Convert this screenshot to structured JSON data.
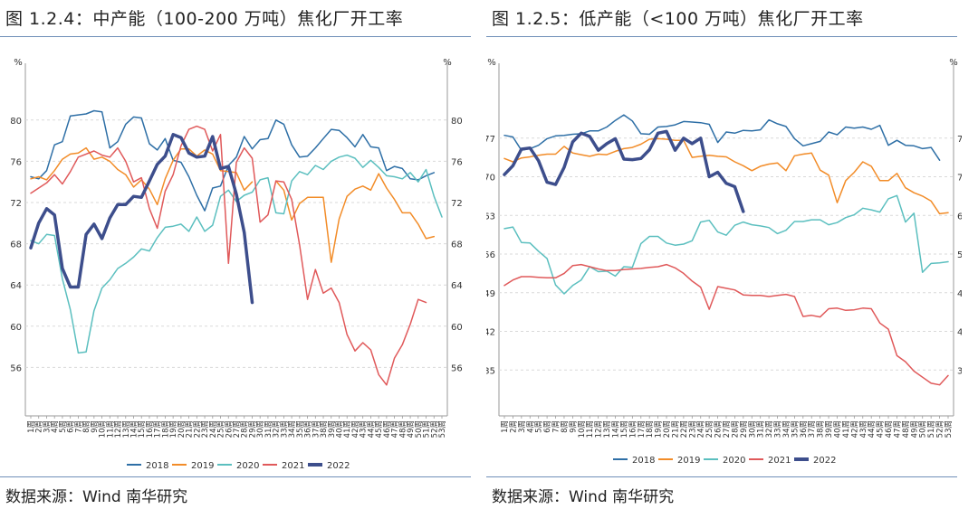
{
  "chart_data": [
    {
      "type": "line",
      "figure_title": "图 1.2.4：中产能（100-200 万吨）焦化厂开工率",
      "source": "数据来源：Wind 南华研究",
      "ylabel_left": "%",
      "ylabel_right": "%",
      "ylim": [
        52,
        82
      ],
      "yticks": [
        56,
        60,
        64,
        68,
        72,
        76,
        80
      ],
      "x_ticks": [
        "1周",
        "2周",
        "3周",
        "4周",
        "5周",
        "6周",
        "7周",
        "8周",
        "9周",
        "10周",
        "11周",
        "12周",
        "13周",
        "14周",
        "15周",
        "16周",
        "17周",
        "18周",
        "19周",
        "20周",
        "21周",
        "22周",
        "23周",
        "24周",
        "25周",
        "26周",
        "27周",
        "28周",
        "29周",
        "30周",
        "31周",
        "32周",
        "33周",
        "34周",
        "35周",
        "36周",
        "37周",
        "38周",
        "39周",
        "40周",
        "41周",
        "42周",
        "43周",
        "44周",
        "45周",
        "46周",
        "47周",
        "48周",
        "49周",
        "50周",
        "51周",
        "52周",
        "53周"
      ],
      "series": [
        {
          "name": "2018",
          "color": "#2e6fa6",
          "width": 1.5,
          "values": [
            74.5,
            74.3,
            75.1,
            77.6,
            77.9,
            80.4,
            80.5,
            80.6,
            80.9,
            80.8,
            77.3,
            77.9,
            79.6,
            80.3,
            80.2,
            77.7,
            77.1,
            78.2,
            76.1,
            75.9,
            74.5,
            72.7,
            71.2,
            73.4,
            73.6,
            75.6,
            76.4,
            78.4,
            77.2,
            78.1,
            78.2,
            80.0,
            79.6,
            77.6,
            76.4,
            76.5,
            77.3,
            78.2,
            79.1,
            79.0,
            78.3,
            77.4,
            78.6,
            77.4,
            77.3,
            75.1,
            75.5,
            75.3,
            74.3,
            74.2,
            74.6,
            74.9,
            null
          ]
        },
        {
          "name": "2019",
          "color": "#f28c28",
          "width": 1.5,
          "values": [
            74.3,
            74.5,
            74.2,
            75.1,
            76.2,
            76.7,
            76.8,
            77.3,
            76.2,
            76.4,
            76.0,
            75.2,
            74.7,
            73.5,
            74.2,
            73.3,
            71.8,
            74.3,
            76.1,
            77.2,
            77.2,
            76.5,
            77.1,
            76.7,
            75.1,
            75.0,
            74.9,
            73.2,
            74.0,
            null,
            null,
            74.1,
            73.2,
            70.3,
            71.9,
            72.5,
            72.5,
            72.5,
            66.2,
            70.4,
            72.6,
            73.3,
            73.6,
            73.2,
            74.8,
            73.4,
            72.3,
            71.0,
            71.0,
            69.9,
            68.5,
            68.7,
            null
          ]
        },
        {
          "name": "2020",
          "color": "#5bbfbf",
          "width": 1.5,
          "values": [
            68.3,
            68.0,
            68.9,
            68.8,
            64.6,
            61.6,
            57.4,
            57.5,
            61.5,
            63.7,
            64.5,
            65.6,
            66.1,
            66.7,
            67.5,
            67.3,
            68.6,
            69.6,
            69.7,
            69.9,
            69.2,
            70.6,
            69.2,
            69.8,
            72.6,
            73.2,
            72.1,
            72.7,
            73.0,
            74.2,
            74.4,
            71.0,
            70.9,
            74.1,
            75.0,
            74.7,
            75.6,
            75.2,
            76.0,
            76.4,
            76.6,
            76.3,
            75.4,
            76.1,
            75.4,
            74.6,
            74.5,
            74.3,
            74.9,
            74.0,
            75.2,
            72.6,
            70.6
          ]
        },
        {
          "name": "2021",
          "color": "#e0595a",
          "width": 1.5,
          "values": [
            72.9,
            73.4,
            73.9,
            74.7,
            73.8,
            75.0,
            76.4,
            76.7,
            77.0,
            76.6,
            76.4,
            77.3,
            76.0,
            74.0,
            74.4,
            71.4,
            69.5,
            73.1,
            74.7,
            77.5,
            79.1,
            79.4,
            79.1,
            77.0,
            78.6,
            66.1,
            75.9,
            77.3,
            76.3,
            70.1,
            70.8,
            74.1,
            74.0,
            72.3,
            67.9,
            62.6,
            65.5,
            63.2,
            63.7,
            62.3,
            59.2,
            57.6,
            58.4,
            57.7,
            55.3,
            54.3,
            56.9,
            58.2,
            60.2,
            62.6,
            62.3,
            null,
            null
          ]
        },
        {
          "name": "2022",
          "color": "#3d4e8c",
          "width": 3.5,
          "values": [
            67.6,
            70.0,
            71.4,
            70.8,
            65.6,
            63.8,
            63.8,
            68.9,
            69.9,
            68.5,
            70.5,
            71.8,
            71.8,
            72.6,
            72.5,
            74.1,
            75.7,
            76.5,
            78.6,
            78.3,
            76.8,
            76.4,
            76.5,
            78.4,
            75.3,
            75.5,
            72.8,
            69.1,
            62.3,
            null,
            null,
            null,
            null,
            null,
            null,
            null,
            null,
            null,
            null,
            null,
            null,
            null,
            null,
            null,
            null,
            null,
            null,
            null,
            null,
            null,
            null,
            null,
            null
          ]
        }
      ]
    },
    {
      "type": "line",
      "figure_title": "图 1.2.5：低产能（<100 万吨）焦化厂开工率",
      "source": "数据来源：Wind 南华研究",
      "ylabel_left": "%",
      "ylabel_right": "%",
      "ylim": [
        28,
        84
      ],
      "yticks": [
        35,
        42,
        49,
        56,
        63,
        70,
        77
      ],
      "x_ticks": [
        "1周",
        "2周",
        "3周",
        "4周",
        "5周",
        "6周",
        "7周",
        "8周",
        "9周",
        "10周",
        "11周",
        "12周",
        "13周",
        "14周",
        "15周",
        "16周",
        "17周",
        "18周",
        "19周",
        "20周",
        "21周",
        "22周",
        "23周",
        "24周",
        "25周",
        "26周",
        "27周",
        "28周",
        "29周",
        "30周",
        "31周",
        "32周",
        "33周",
        "34周",
        "35周",
        "36周",
        "37周",
        "38周",
        "39周",
        "40周",
        "41周",
        "42周",
        "43周",
        "44周",
        "45周",
        "46周",
        "47周",
        "48周",
        "49周",
        "50周",
        "51周",
        "52周",
        "53周"
      ],
      "series": [
        {
          "name": "2018",
          "color": "#2e6fa6",
          "width": 1.5,
          "values": [
            77.5,
            77.2,
            74.8,
            75.1,
            75.7,
            76.9,
            77.4,
            77.5,
            77.7,
            77.8,
            78.3,
            78.3,
            79.0,
            80.2,
            81.2,
            80.1,
            77.8,
            77.7,
            79.0,
            79.1,
            79.4,
            80.0,
            79.9,
            79.8,
            79.5,
            76.2,
            78.1,
            77.9,
            78.4,
            78.3,
            78.5,
            80.3,
            79.6,
            79.1,
            76.9,
            75.6,
            76.0,
            76.4,
            78.1,
            77.6,
            79.0,
            78.8,
            79.0,
            78.6,
            79.3,
            75.7,
            76.6,
            75.7,
            75.6,
            75.1,
            75.3,
            73.0,
            null
          ]
        },
        {
          "name": "2019",
          "color": "#f28c28",
          "width": 1.5,
          "values": [
            73.3,
            72.7,
            73.4,
            73.6,
            73.9,
            74.1,
            74.1,
            75.5,
            74.3,
            74.0,
            73.7,
            74.1,
            74.0,
            74.6,
            75.1,
            75.3,
            75.9,
            76.8,
            76.9,
            76.8,
            76.6,
            76.6,
            73.5,
            73.7,
            73.9,
            73.7,
            73.6,
            72.7,
            72.0,
            71.1,
            71.9,
            72.3,
            72.5,
            71.1,
            73.8,
            74.1,
            74.3,
            71.2,
            70.3,
            65.3,
            69.3,
            70.8,
            72.7,
            71.9,
            69.3,
            69.3,
            70.6,
            68.0,
            67.1,
            66.5,
            65.6,
            63.3,
            63.5
          ]
        },
        {
          "name": "2020",
          "color": "#5bbfbf",
          "width": 1.5,
          "values": [
            60.6,
            60.9,
            58.1,
            58.0,
            56.5,
            55.2,
            50.4,
            48.8,
            50.3,
            51.3,
            53.7,
            52.8,
            52.9,
            52.0,
            53.7,
            53.6,
            57.9,
            59.2,
            59.2,
            58.0,
            57.6,
            57.8,
            58.4,
            61.8,
            62.1,
            60.0,
            59.4,
            61.2,
            61.8,
            61.3,
            61.1,
            60.8,
            59.7,
            60.3,
            61.9,
            61.9,
            62.2,
            62.2,
            61.3,
            61.7,
            62.6,
            63.1,
            64.3,
            64.0,
            63.6,
            66.0,
            66.6,
            61.8,
            63.4,
            52.7,
            54.3,
            54.4,
            54.6
          ]
        },
        {
          "name": "2021",
          "color": "#e0595a",
          "width": 1.5,
          "values": [
            50.3,
            51.3,
            51.9,
            51.9,
            51.8,
            51.7,
            51.7,
            52.5,
            53.9,
            54.1,
            53.7,
            53.3,
            53.0,
            53.0,
            53.2,
            53.3,
            53.4,
            53.6,
            53.7,
            54.1,
            53.5,
            52.5,
            51.1,
            50.0,
            46.0,
            50.1,
            49.8,
            49.5,
            48.6,
            48.5,
            48.5,
            48.3,
            48.5,
            48.7,
            48.3,
            44.7,
            44.9,
            44.6,
            46.1,
            46.2,
            45.8,
            45.9,
            46.2,
            46.1,
            43.5,
            42.4,
            37.6,
            36.5,
            34.8,
            33.7,
            32.6,
            32.3,
            34.0
          ]
        },
        {
          "name": "2022",
          "color": "#3d4e8c",
          "width": 3.5,
          "values": [
            70.4,
            72.0,
            75.0,
            75.2,
            72.9,
            69.0,
            68.6,
            71.7,
            76.3,
            77.9,
            77.3,
            74.8,
            76.0,
            76.9,
            73.2,
            73.1,
            73.3,
            74.9,
            77.9,
            78.2,
            74.8,
            77.0,
            76.0,
            77.0,
            70.0,
            70.8,
            68.8,
            68.2,
            63.7,
            null,
            null,
            null,
            null,
            null,
            null,
            null,
            null,
            null,
            null,
            null,
            null,
            null,
            null,
            null,
            null,
            null,
            null,
            null,
            null,
            null,
            null,
            null,
            null
          ]
        }
      ]
    }
  ]
}
